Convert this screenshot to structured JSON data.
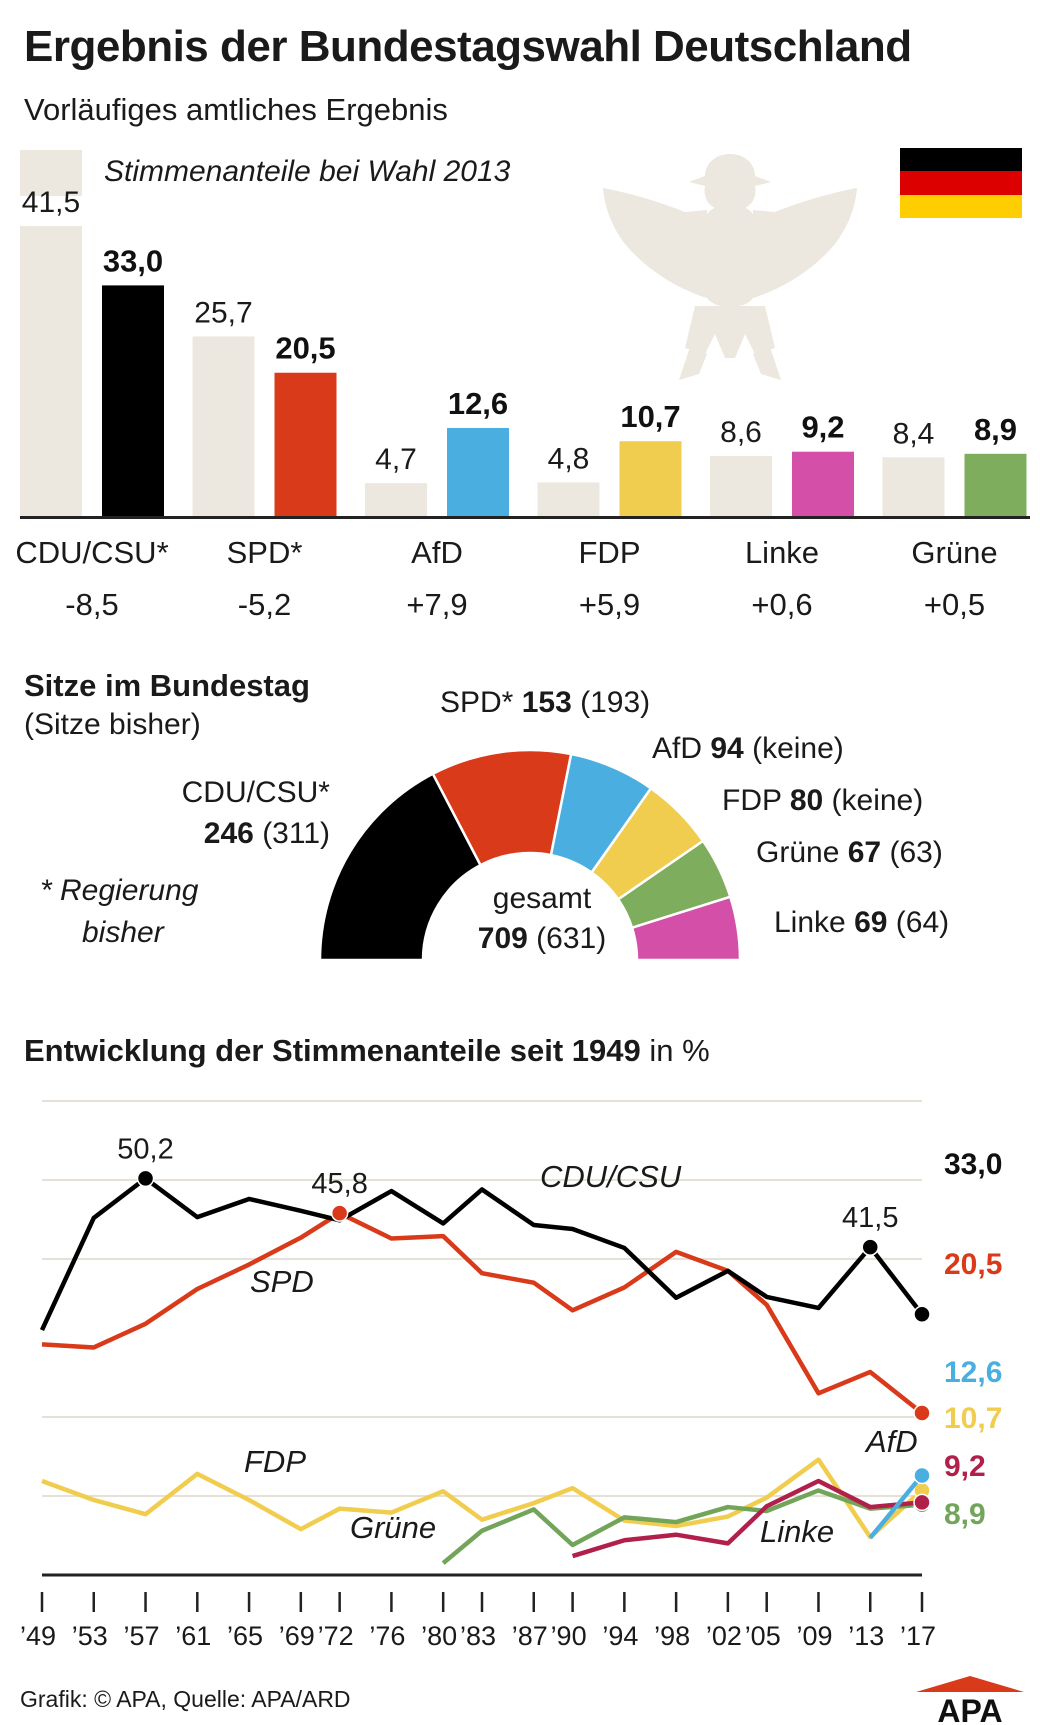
{
  "header": {
    "title": "Ergebnis der Bundestagswahl Deutschland",
    "subtitle": "Vorläufiges amtliches Ergebnis",
    "legend_label": "Stimmenanteile bei Wahl 2013"
  },
  "colors": {
    "prev": "#ece8df",
    "CDU/CSU": "#000000",
    "SPD": "#d93a19",
    "AfD": "#4aaee0",
    "FDP": "#f1cd4f",
    "Linke": "#d44fa8",
    "Grüne": "#7fad5e",
    "Linke_line": "#b0204a",
    "Grüne_line": "#72a55a",
    "grid": "#e6e1d6",
    "eagle": "#ece8df"
  },
  "seats": {
    "title": "Sitze im Bundestag",
    "subtitle": "(Sitze bisher)",
    "note_line1": "* Regierung",
    "note_line2": "bisher",
    "total_label": "gesamt",
    "total": "709",
    "total_prev": "(631)",
    "parties": [
      {
        "name": "CDU/CSU*",
        "seats": "246",
        "prev": "(311)",
        "count": 246
      },
      {
        "name": "SPD*",
        "seats": "153",
        "prev": "(193)",
        "count": 153
      },
      {
        "name": "AfD",
        "seats": "94",
        "prev": "(keine)",
        "count": 94
      },
      {
        "name": "FDP",
        "seats": "80",
        "prev": "(keine)",
        "count": 80
      },
      {
        "name": "Grüne",
        "seats": "67",
        "prev": "(63)",
        "count": 67
      },
      {
        "name": "Linke",
        "seats": "69",
        "prev": "(64)",
        "count": 69
      }
    ]
  },
  "trend_title": {
    "bold": "Entwicklung der Stimmenanteile seit 1949",
    "normal": " in %"
  },
  "footer": "Grafik: © APA, Quelle: APA/ARD",
  "logo": "APA",
  "chart_data": [
    {
      "type": "bar",
      "title": "Vorläufiges amtliches Ergebnis",
      "categories": [
        "CDU/CSU*",
        "SPD*",
        "AfD",
        "FDP",
        "Linke",
        "Grüne"
      ],
      "change": [
        "-8,5",
        "-5,2",
        "+7,9",
        "+5,9",
        "+0,6",
        "+0,5"
      ],
      "series": [
        {
          "name": "Stimmenanteile bei Wahl 2013",
          "values": [
            41.5,
            25.7,
            4.7,
            4.8,
            8.6,
            8.4
          ],
          "labels": [
            "41,5",
            "25,7",
            "4,7",
            "4,8",
            "8,6",
            "8,4"
          ]
        },
        {
          "values": [
            33.0,
            20.5,
            12.6,
            10.7,
            9.2,
            8.9
          ],
          "labels": [
            "33,0",
            "20,5",
            "12,6",
            "10,7",
            "9,2",
            "8,9"
          ]
        }
      ],
      "ylim": [
        0,
        42
      ]
    },
    {
      "type": "pie",
      "title": "Sitze im Bundestag",
      "categories": [
        "CDU/CSU*",
        "SPD*",
        "AfD",
        "FDP",
        "Grüne",
        "Linke"
      ],
      "values": [
        246,
        153,
        94,
        80,
        67,
        69
      ]
    },
    {
      "type": "line",
      "title": "Entwicklung der Stimmenanteile seit 1949",
      "x": [
        1949,
        1953,
        1957,
        1961,
        1965,
        1969,
        1972,
        1976,
        1980,
        1983,
        1987,
        1990,
        1994,
        1998,
        2002,
        2005,
        2009,
        2013,
        2017
      ],
      "x_tick_labels": [
        "’49",
        "’53",
        "’57",
        "’61",
        "’65",
        "’69",
        "’72",
        "’76",
        "’80",
        "’83",
        "’87",
        "’90",
        "’94",
        "’98",
        "’02",
        "’05",
        "’09",
        "’13",
        "’17"
      ],
      "ylim": [
        0,
        60
      ],
      "series": [
        {
          "name": "CDU/CSU",
          "values": [
            31.0,
            45.2,
            50.2,
            45.3,
            47.6,
            46.1,
            44.9,
            48.6,
            44.5,
            48.8,
            44.3,
            43.8,
            41.4,
            35.1,
            38.5,
            35.2,
            33.8,
            41.5,
            33.0
          ],
          "end_label": "33,0"
        },
        {
          "name": "SPD",
          "values": [
            29.2,
            28.8,
            31.8,
            36.2,
            39.3,
            42.7,
            45.8,
            42.6,
            42.9,
            38.2,
            37.0,
            33.5,
            36.4,
            40.9,
            38.5,
            34.2,
            23.0,
            25.7,
            20.5
          ],
          "end_label": "20,5"
        },
        {
          "name": "FDP",
          "values": [
            11.9,
            9.5,
            7.7,
            12.8,
            9.5,
            5.8,
            8.4,
            7.9,
            10.6,
            7.0,
            9.1,
            11.0,
            6.9,
            6.2,
            7.4,
            9.8,
            14.6,
            4.8,
            10.7
          ],
          "end_label": "10,7"
        },
        {
          "name": "Grüne",
          "x": [
            1980,
            1983,
            1987,
            1990,
            1994,
            1998,
            2002,
            2005,
            2009,
            2013,
            2017
          ],
          "values": [
            1.5,
            5.6,
            8.3,
            3.8,
            7.3,
            6.7,
            8.6,
            8.1,
            10.7,
            8.4,
            8.9
          ],
          "end_label": "8,9"
        },
        {
          "name": "Linke",
          "x": [
            1990,
            1994,
            1998,
            2002,
            2005,
            2009,
            2013,
            2017
          ],
          "values": [
            2.4,
            4.4,
            5.1,
            4.0,
            8.7,
            11.9,
            8.6,
            9.2
          ],
          "end_label": "9,2"
        },
        {
          "name": "AfD",
          "x": [
            2013,
            2017
          ],
          "values": [
            4.7,
            12.6
          ],
          "end_label": "12,6"
        }
      ],
      "annotations": [
        {
          "x": 1957,
          "series": "CDU/CSU",
          "label": "50,2"
        },
        {
          "x": 1972,
          "series": "SPD",
          "label": "45,8"
        },
        {
          "x": 2013,
          "series": "CDU/CSU",
          "label": "41,5"
        }
      ]
    }
  ]
}
